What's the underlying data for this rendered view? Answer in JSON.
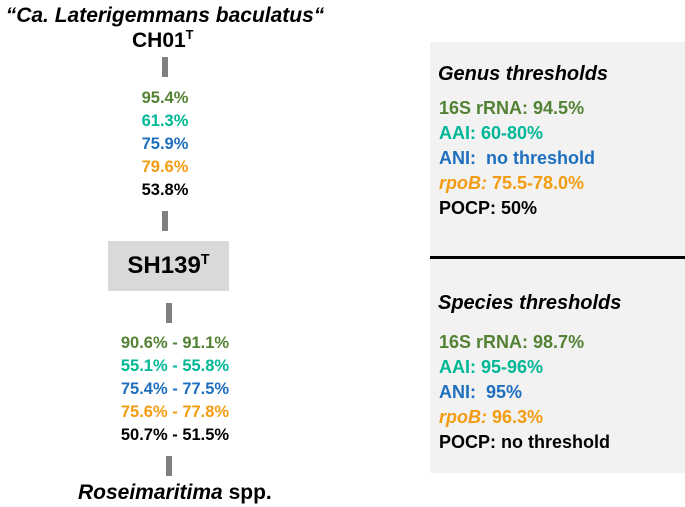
{
  "top": {
    "title": "“Ca. Laterigemmans baculatus“",
    "strain": "CH01",
    "strain_sup": "T"
  },
  "upper_values": [
    {
      "text": "95.4%",
      "color": "#548235"
    },
    {
      "text": "61.3%",
      "color": "#00b896"
    },
    {
      "text": "75.9%",
      "color": "#1f6fbf"
    },
    {
      "text": "79.6%",
      "color": "#f39c12"
    },
    {
      "text": "53.8%",
      "color": "#000000"
    }
  ],
  "center": {
    "strain": "SH139",
    "strain_sup": "T"
  },
  "lower_values": [
    {
      "text": "90.6% - 91.1%",
      "color": "#548235"
    },
    {
      "text": "55.1% - 55.8%",
      "color": "#00b896"
    },
    {
      "text": "75.4% - 77.5%",
      "color": "#1f6fbf"
    },
    {
      "text": "75.6% - 77.8%",
      "color": "#f39c12"
    },
    {
      "text": "50.7% - 51.5%",
      "color": "#000000"
    }
  ],
  "bottom": {
    "genus": "Roseimaritima",
    "suffix": " spp."
  },
  "genus_panel": {
    "heading": "Genus thresholds",
    "items": [
      {
        "label": "16S rRNA:",
        "value": " 94.5%",
        "color": "#548235",
        "italic": false
      },
      {
        "label": "AAI:",
        "value": " 60-80%",
        "color": "#00b896",
        "italic": false
      },
      {
        "label": "ANI:",
        "value": "  no threshold",
        "color": "#1f6fbf",
        "italic": false
      },
      {
        "label": "rpoB:",
        "value": " 75.5-78.0%",
        "color": "#f39c12",
        "italic": true
      },
      {
        "label": "POCP:",
        "value": " 50%",
        "color": "#000000",
        "italic": false
      }
    ]
  },
  "species_panel": {
    "heading": "Species thresholds",
    "items": [
      {
        "label": "16S rRNA:",
        "value": " 98.7%",
        "color": "#548235",
        "italic": false
      },
      {
        "label": "AAI:",
        "value": " 95-96%",
        "color": "#00b896",
        "italic": false
      },
      {
        "label": "ANI:",
        "value": "  95%",
        "color": "#1f6fbf",
        "italic": false
      },
      {
        "label": "rpoB:",
        "value": " 96.3%",
        "color": "#f39c12",
        "italic": true
      },
      {
        "label": "POCP:",
        "value": " no threshold",
        "color": "#000000",
        "italic": false
      }
    ]
  },
  "colors": {
    "connector": "#7f7f7f",
    "box": "#d9d9d9",
    "panel": "#f2f2f2"
  }
}
